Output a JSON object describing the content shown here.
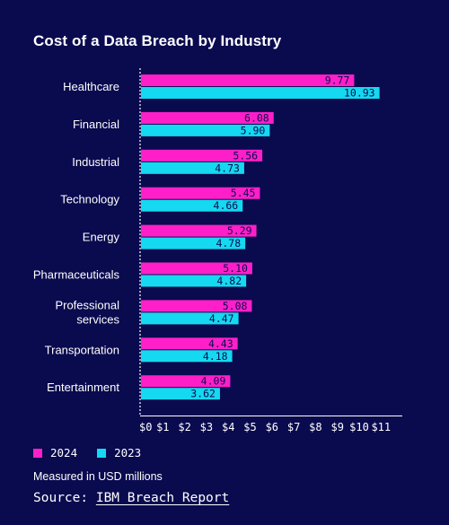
{
  "title": "Cost of a Data Breach by Industry",
  "colors": {
    "background": "#0a0a4f",
    "series_2024": "#ff1fc9",
    "series_2023": "#14d9f0"
  },
  "chart_data": {
    "type": "bar",
    "orientation": "horizontal",
    "title": "Cost of a Data Breach by Industry",
    "categories": [
      [
        "Healthcare"
      ],
      [
        "Financial"
      ],
      [
        "Industrial"
      ],
      [
        "Technology"
      ],
      [
        "Energy"
      ],
      [
        "Pharmaceuticals"
      ],
      [
        "Professional",
        "services"
      ],
      [
        "Transportation"
      ],
      [
        "Entertainment"
      ]
    ],
    "series": [
      {
        "name": "2024",
        "color": "#ff1fc9",
        "values": [
          9.77,
          6.08,
          5.56,
          5.45,
          5.29,
          5.1,
          5.08,
          4.43,
          4.09
        ]
      },
      {
        "name": "2023",
        "color": "#14d9f0",
        "values": [
          10.93,
          5.9,
          4.73,
          4.66,
          4.78,
          4.82,
          4.47,
          4.18,
          3.62
        ]
      }
    ],
    "value_labels": [
      [
        "9.77",
        "6.08",
        "5.56",
        "5.45",
        "5.29",
        "5.10",
        "5.08",
        "4.43",
        "4.09"
      ],
      [
        "10.93",
        "5.90",
        "4.73",
        "4.66",
        "4.78",
        "4.82",
        "4.47",
        "4.18",
        "3.62"
      ]
    ],
    "x_ticks": [
      "$0",
      "$1",
      "$2",
      "$3",
      "$4",
      "$5",
      "$6",
      "$7",
      "$8",
      "$9",
      "$10",
      "$11"
    ],
    "xlim": [
      0,
      12
    ],
    "grid": false,
    "legend_position": "bottom-left"
  },
  "legend": {
    "items": [
      {
        "label": "2024"
      },
      {
        "label": "2023"
      }
    ]
  },
  "note": "Measured in USD millions",
  "source": {
    "prefix": "Source: ",
    "link": "IBM Breach Report"
  }
}
